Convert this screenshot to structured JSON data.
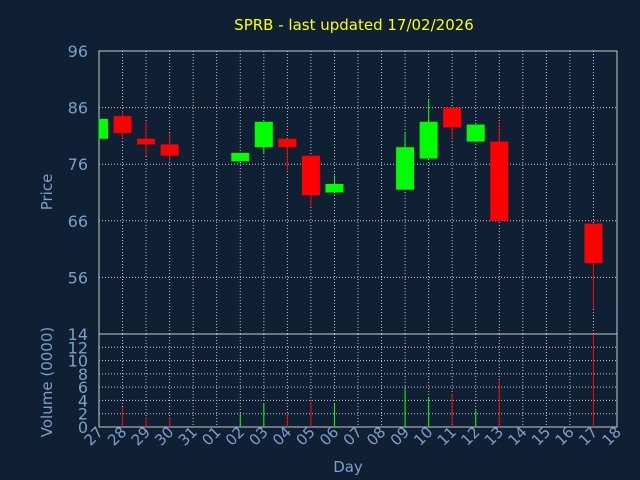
{
  "title": "SPRB - last updated 17/02/2026",
  "colors": {
    "background": "#0f2035",
    "title": "#ffff00",
    "axis_text": "#7f9fc8",
    "grid": "#c8c8c8",
    "frame": "#c8c8c8",
    "up": "#00ff00",
    "down": "#ff0000"
  },
  "chart_data": [
    {
      "type": "candlestick",
      "ylabel": "Price",
      "ylim": [
        46,
        96
      ],
      "yticks": [
        96,
        86,
        76,
        66,
        56
      ],
      "grid": true,
      "candles": [
        {
          "day": "27",
          "open": 80.5,
          "high": 84.0,
          "low": 80.5,
          "close": 84.0
        },
        {
          "day": "28",
          "open": 84.5,
          "high": 85.5,
          "low": 80.5,
          "close": 81.5
        },
        {
          "day": "29",
          "open": 80.5,
          "high": 83.5,
          "low": 77.5,
          "close": 79.5
        },
        {
          "day": "30",
          "open": 79.5,
          "high": 81.5,
          "low": 76.5,
          "close": 77.5
        },
        {
          "day": "02",
          "open": 76.5,
          "high": 78.0,
          "low": 76.5,
          "close": 78.0
        },
        {
          "day": "03",
          "open": 79.0,
          "high": 83.5,
          "low": 78.0,
          "close": 83.5
        },
        {
          "day": "04",
          "open": 80.5,
          "high": 80.5,
          "low": 75.0,
          "close": 79.0
        },
        {
          "day": "05",
          "open": 77.5,
          "high": 77.5,
          "low": 68.5,
          "close": 70.5
        },
        {
          "day": "06",
          "open": 71.0,
          "high": 74.0,
          "low": 71.0,
          "close": 72.5
        },
        {
          "day": "09",
          "open": 71.5,
          "high": 81.5,
          "low": 71.5,
          "close": 79.0
        },
        {
          "day": "10",
          "open": 77.0,
          "high": 87.5,
          "low": 77.0,
          "close": 83.5
        },
        {
          "day": "11",
          "open": 86.0,
          "high": 86.0,
          "low": 80.5,
          "close": 82.5
        },
        {
          "day": "12",
          "open": 80.0,
          "high": 83.0,
          "low": 80.0,
          "close": 83.0
        },
        {
          "day": "13",
          "open": 80.0,
          "high": 83.5,
          "low": 66.0,
          "close": 66.0
        },
        {
          "day": "17",
          "open": 65.5,
          "high": 65.5,
          "low": 50.5,
          "close": 58.5
        }
      ]
    },
    {
      "type": "bar",
      "ylabel": "Volume (0000)",
      "xlabel": "Day",
      "ylim": [
        0,
        14
      ],
      "yticks": [
        14,
        12,
        10,
        8,
        6,
        4,
        2,
        0
      ],
      "grid": true,
      "categories": [
        "27",
        "28",
        "29",
        "30",
        "31",
        "01",
        "02",
        "03",
        "04",
        "05",
        "06",
        "07",
        "08",
        "09",
        "10",
        "11",
        "12",
        "13",
        "14",
        "15",
        "16",
        "17",
        "18"
      ],
      "bars": [
        {
          "day": "28",
          "value": 3,
          "direction": "down"
        },
        {
          "day": "29",
          "value": 1.5,
          "direction": "down"
        },
        {
          "day": "30",
          "value": 1.5,
          "direction": "down"
        },
        {
          "day": "02",
          "value": 2,
          "direction": "up"
        },
        {
          "day": "03",
          "value": 3.5,
          "direction": "up"
        },
        {
          "day": "04",
          "value": 2,
          "direction": "down"
        },
        {
          "day": "05",
          "value": 4,
          "direction": "down"
        },
        {
          "day": "06",
          "value": 3.5,
          "direction": "up"
        },
        {
          "day": "09",
          "value": 6,
          "direction": "up"
        },
        {
          "day": "10",
          "value": 4.5,
          "direction": "up"
        },
        {
          "day": "11",
          "value": 5,
          "direction": "down"
        },
        {
          "day": "12",
          "value": 2.5,
          "direction": "up"
        },
        {
          "day": "13",
          "value": 7,
          "direction": "down"
        },
        {
          "day": "17",
          "value": 14,
          "direction": "down"
        }
      ]
    }
  ]
}
